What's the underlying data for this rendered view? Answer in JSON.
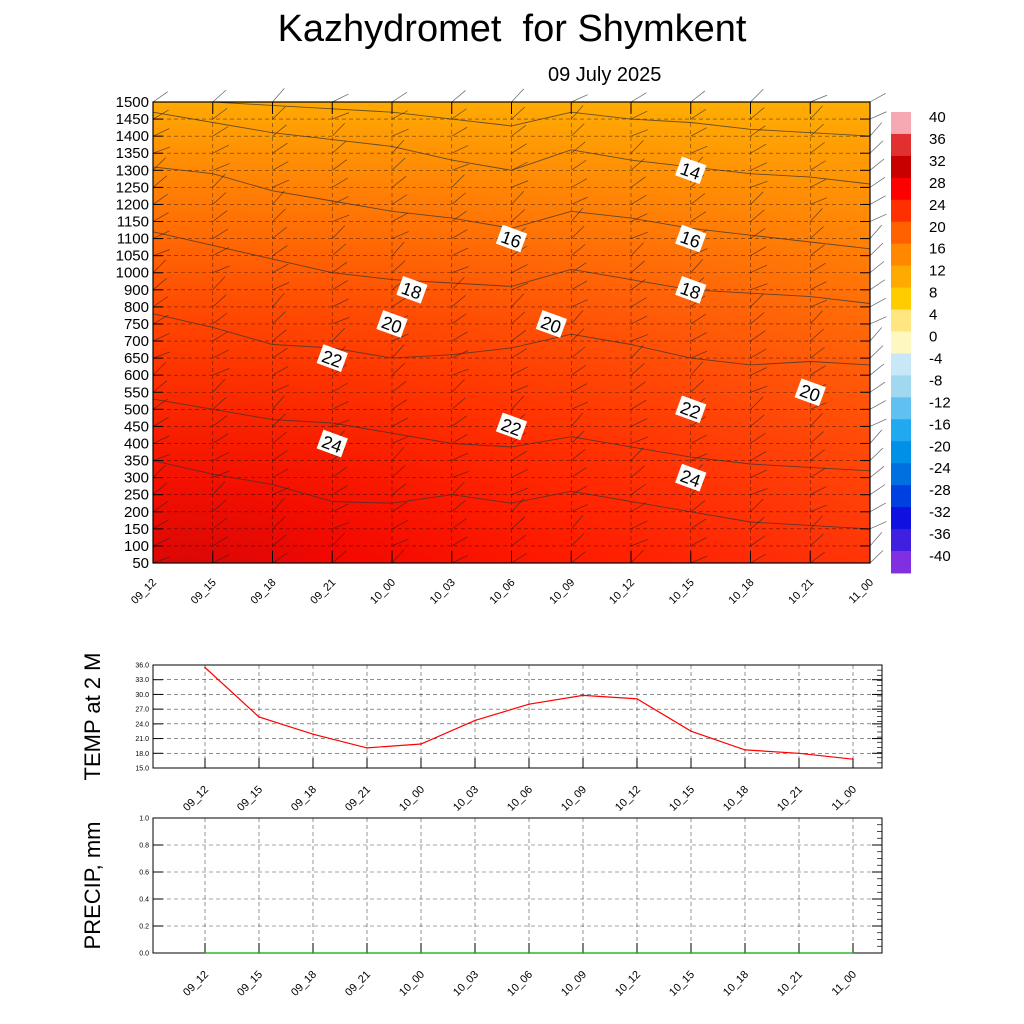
{
  "title": "Kazhydromet  for Shymkent",
  "subtitle": "09 July 2025",
  "chart_data": [
    {
      "type": "heatmap",
      "y_ticks": [
        "50",
        "100",
        "150",
        "200",
        "250",
        "300",
        "350",
        "400",
        "450",
        "500",
        "550",
        "600",
        "650",
        "700",
        "750",
        "800",
        "900",
        "1000",
        "1050",
        "1100",
        "1150",
        "1200",
        "1250",
        "1300",
        "1350",
        "1400",
        "1450",
        "1500"
      ],
      "x_ticks": [
        "09_12",
        "09_15",
        "09_18",
        "09_21",
        "10_00",
        "10_03",
        "10_06",
        "10_09",
        "10_12",
        "10_15",
        "10_18",
        "10_21",
        "11_00"
      ],
      "colorbar": {
        "ticks": [
          "40",
          "36",
          "32",
          "28",
          "24",
          "20",
          "16",
          "12",
          "8",
          "4",
          "0",
          "-4",
          "-8",
          "-12",
          "-16",
          "-20",
          "-24",
          "-28",
          "-32",
          "-36",
          "-40"
        ],
        "colors": [
          "#f7a9b3",
          "#e03030",
          "#c80000",
          "#ff0000",
          "#ff3000",
          "#ff6000",
          "#ff8800",
          "#ffaa00",
          "#ffcc00",
          "#ffe680",
          "#fff7c0",
          "#c8e8f8",
          "#a0d8f0",
          "#60c0f0",
          "#20a8f0",
          "#0090e8",
          "#0070e0",
          "#0040e0",
          "#1010e0",
          "#4020e0",
          "#8030e0"
        ]
      },
      "contour_labels": [
        {
          "text": "14",
          "x": "10_15",
          "y": "1300"
        },
        {
          "text": "16",
          "x": "10_06",
          "y": "1100"
        },
        {
          "text": "16",
          "x": "10_15",
          "y": "1100"
        },
        {
          "text": "18",
          "x": "10_01",
          "y": "900"
        },
        {
          "text": "18",
          "x": "10_15",
          "y": "900"
        },
        {
          "text": "20",
          "x": "10_00",
          "y": "750"
        },
        {
          "text": "20",
          "x": "10_08",
          "y": "750"
        },
        {
          "text": "20",
          "x": "10_21",
          "y": "550"
        },
        {
          "text": "22",
          "x": "09_21",
          "y": "650"
        },
        {
          "text": "22",
          "x": "10_06",
          "y": "450"
        },
        {
          "text": "22",
          "x": "10_15",
          "y": "500"
        },
        {
          "text": "24",
          "x": "09_21",
          "y": "400"
        },
        {
          "text": "24",
          "x": "10_15",
          "y": "300"
        }
      ]
    },
    {
      "type": "line",
      "ylabel": "TEMP at 2 M",
      "x": [
        "09_12",
        "09_15",
        "09_18",
        "09_21",
        "10_00",
        "10_03",
        "10_06",
        "10_09",
        "10_12",
        "10_15",
        "10_18",
        "10_21",
        "11_00"
      ],
      "y_ticks": [
        "36.0",
        "33.0",
        "30.0",
        "27.0",
        "24.0",
        "21.0",
        "18.0",
        "15.0"
      ],
      "ylim": [
        15,
        36
      ],
      "series": [
        {
          "values": [
            35.5,
            25.4,
            21.9,
            19.1,
            19.9,
            24.7,
            28.0,
            29.8,
            29.1,
            22.5,
            18.7,
            18.0,
            16.8
          ],
          "color": "#ff0000"
        }
      ]
    },
    {
      "type": "line",
      "ylabel": "PRECIP, mm",
      "x": [
        "09_12",
        "09_15",
        "09_18",
        "09_21",
        "10_00",
        "10_03",
        "10_06",
        "10_09",
        "10_12",
        "10_15",
        "10_18",
        "10_21",
        "11_00"
      ],
      "y_ticks": [
        "1.0",
        "0.8",
        "0.6",
        "0.4",
        "0.2",
        "0.0"
      ],
      "ylim": [
        0,
        1
      ],
      "series": [
        {
          "values": [
            0,
            0,
            0,
            0,
            0,
            0,
            0,
            0,
            0,
            0,
            0,
            0,
            0
          ],
          "color": "#00aa00"
        }
      ]
    }
  ]
}
